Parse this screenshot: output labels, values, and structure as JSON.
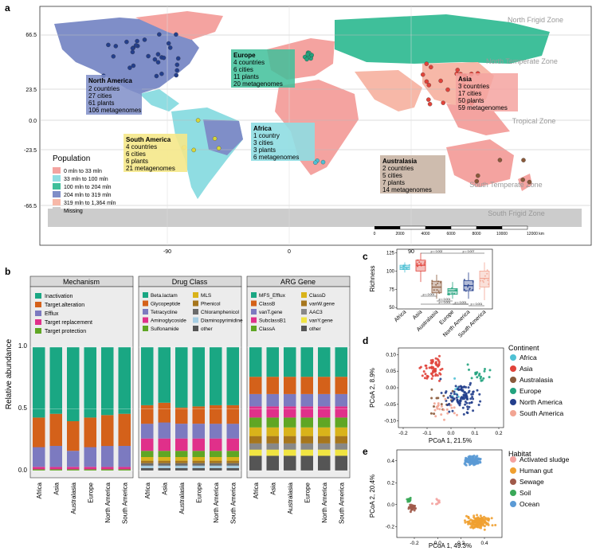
{
  "panel_labels": {
    "a": "a",
    "b": "b",
    "c": "c",
    "d": "d",
    "e": "e"
  },
  "colors": {
    "africa": "#4fc1d4",
    "asia": "#e0433a",
    "australasia": "#8a5a3b",
    "europe": "#23a37e",
    "north_america": "#243f8c",
    "south_america": "#f2a593",
    "pop0": "#f4a3a0",
    "pop1": "#8fdde2",
    "pop2": "#3fbf9a",
    "pop3": "#7f8ec8",
    "pop4": "#f7b8a8",
    "missing": "#cccccc",
    "ocean": "#ffffff",
    "inactivation": "#1aa783",
    "target_alteration": "#d4611a",
    "efflux": "#7c7ac0",
    "target_replacement": "#e0308a",
    "target_protection": "#5fa624"
  },
  "map": {
    "zones": [
      "North Frigid Zone",
      "North Temperate Zone",
      "Tropical Zone",
      "South Temperate Zone",
      "South Frigid Zone"
    ],
    "lat_ticks": [
      "66.5",
      "23.5",
      "0.0",
      "-23.5",
      "-66.5"
    ],
    "lon_ticks": [
      "-90",
      "0",
      "90"
    ],
    "legend_title": "Population",
    "legend_items": [
      "0 mln to 33 mln",
      "33 mln to 100 mln",
      "100 mln to 204 mln",
      "204 mln to 319 mln",
      "319 mln to 1,364 mln",
      "Missing"
    ],
    "scale_ticks": [
      "0",
      "2000",
      "4000",
      "6000",
      "8000",
      "10000",
      "12000 km"
    ],
    "boxes": [
      {
        "title": "North America",
        "lines": [
          "2 countries",
          "27 cities",
          "61 plants",
          "106 metagenomes"
        ]
      },
      {
        "title": "Europe",
        "lines": [
          "4 countries",
          "6 cities",
          "11 plants",
          "20 metagenomes"
        ]
      },
      {
        "title": "Asia",
        "lines": [
          "3 countries",
          "17 cities",
          "50 plants",
          "59 metagenomes"
        ]
      },
      {
        "title": "South America",
        "lines": [
          "4 countries",
          "6 cities",
          "6 plants",
          "21 metagenomes"
        ]
      },
      {
        "title": "Africa",
        "lines": [
          "1 country",
          "3 cities",
          "3 plants",
          "6 metagenomes"
        ]
      },
      {
        "title": "Australasia",
        "lines": [
          "2 countries",
          "5 cities",
          "7 plants",
          "14 metagenomes"
        ]
      }
    ]
  },
  "chart_data": [
    {
      "type": "bar",
      "title": "Mechanism",
      "categories": [
        "Africa",
        "Asia",
        "Australasia",
        "Europe",
        "North America",
        "South America"
      ],
      "ylabel": "Relative abundance",
      "ylim": [
        0,
        1
      ],
      "yticks": [
        "0.0",
        "0.5",
        "1.0"
      ],
      "series": [
        {
          "name": "Target protection",
          "values": [
            0.01,
            0.01,
            0.01,
            0.01,
            0.01,
            0.01
          ]
        },
        {
          "name": "Target replacement",
          "values": [
            0.02,
            0.02,
            0.02,
            0.02,
            0.02,
            0.02
          ]
        },
        {
          "name": "Efflux",
          "values": [
            0.16,
            0.17,
            0.13,
            0.16,
            0.17,
            0.17
          ]
        },
        {
          "name": "Target.alteration",
          "values": [
            0.24,
            0.26,
            0.24,
            0.24,
            0.25,
            0.26
          ]
        },
        {
          "name": "Inactivation",
          "values": [
            0.57,
            0.54,
            0.6,
            0.57,
            0.55,
            0.54
          ]
        }
      ]
    },
    {
      "type": "bar",
      "title": "Drug Class",
      "categories": [
        "Africa",
        "Asia",
        "Australasia",
        "Europe",
        "North America",
        "South America"
      ],
      "legend": [
        "Beta.lactam",
        "Glycopeptide",
        "Tetracycline",
        "Aminoglycoside",
        "Sulfonamide",
        "MLS",
        "Phenicol",
        "Chloramphenicol",
        "Diaminopyrimidine",
        "other"
      ],
      "series": [
        {
          "name": "other",
          "values": [
            0.02,
            0.02,
            0.02,
            0.02,
            0.02,
            0.02
          ]
        },
        {
          "name": "Diaminopyrimidine",
          "values": [
            0.02,
            0.02,
            0.02,
            0.02,
            0.02,
            0.02
          ]
        },
        {
          "name": "Chloramphenicol",
          "values": [
            0.02,
            0.02,
            0.02,
            0.02,
            0.02,
            0.02
          ]
        },
        {
          "name": "Phenicol",
          "values": [
            0.02,
            0.02,
            0.02,
            0.02,
            0.02,
            0.02
          ]
        },
        {
          "name": "MLS",
          "values": [
            0.03,
            0.03,
            0.03,
            0.03,
            0.03,
            0.03
          ]
        },
        {
          "name": "Sulfonamide",
          "values": [
            0.05,
            0.05,
            0.05,
            0.05,
            0.05,
            0.05
          ]
        },
        {
          "name": "Aminoglycoside",
          "values": [
            0.1,
            0.1,
            0.1,
            0.1,
            0.1,
            0.1
          ]
        },
        {
          "name": "Tetracycline",
          "values": [
            0.12,
            0.13,
            0.12,
            0.12,
            0.12,
            0.12
          ]
        },
        {
          "name": "Glycopeptide",
          "values": [
            0.15,
            0.16,
            0.13,
            0.14,
            0.15,
            0.15
          ]
        },
        {
          "name": "Beta.lactam",
          "values": [
            0.47,
            0.45,
            0.49,
            0.48,
            0.47,
            0.47
          ]
        }
      ]
    },
    {
      "type": "bar",
      "title": "ARG Gene",
      "categories": [
        "Africa",
        "Asia",
        "Australasia",
        "Europe",
        "North America",
        "South America"
      ],
      "legend": [
        "MFS_Efflux",
        "ClassB",
        "vanT.gene",
        "SubclassB1",
        "ClassA",
        "ClassD",
        "vanW.gene",
        "AAC3",
        "vanY.gene",
        "other"
      ],
      "series": [
        {
          "name": "other",
          "values": [
            0.12,
            0.12,
            0.12,
            0.12,
            0.12,
            0.12
          ]
        },
        {
          "name": "vanY.gene",
          "values": [
            0.05,
            0.05,
            0.05,
            0.05,
            0.05,
            0.05
          ]
        },
        {
          "name": "AAC3",
          "values": [
            0.05,
            0.05,
            0.05,
            0.05,
            0.05,
            0.05
          ]
        },
        {
          "name": "vanW.gene",
          "values": [
            0.06,
            0.06,
            0.06,
            0.06,
            0.06,
            0.06
          ]
        },
        {
          "name": "ClassD",
          "values": [
            0.07,
            0.07,
            0.07,
            0.07,
            0.07,
            0.07
          ]
        },
        {
          "name": "ClassA",
          "values": [
            0.08,
            0.08,
            0.08,
            0.08,
            0.08,
            0.08
          ]
        },
        {
          "name": "SubclassB1",
          "values": [
            0.09,
            0.09,
            0.09,
            0.09,
            0.09,
            0.09
          ]
        },
        {
          "name": "vanT.gene",
          "values": [
            0.1,
            0.1,
            0.1,
            0.1,
            0.1,
            0.1
          ]
        },
        {
          "name": "ClassB",
          "values": [
            0.14,
            0.14,
            0.14,
            0.14,
            0.14,
            0.14
          ]
        },
        {
          "name": "MFS_Efflux",
          "values": [
            0.24,
            0.24,
            0.24,
            0.24,
            0.24,
            0.24
          ]
        }
      ]
    },
    {
      "type": "box",
      "categories": [
        "Africa",
        "Asia",
        "Australasia",
        "Europe",
        "North America",
        "South America"
      ],
      "ylabel": "Richness",
      "ylim": [
        48,
        130
      ],
      "yticks": [
        "50",
        "75",
        "100",
        "125"
      ],
      "boxes": [
        {
          "min": 98,
          "q1": 102,
          "median": 105,
          "q3": 108,
          "max": 112
        },
        {
          "min": 85,
          "q1": 100,
          "median": 108,
          "q3": 115,
          "max": 125
        },
        {
          "min": 62,
          "q1": 70,
          "median": 78,
          "q3": 86,
          "max": 95
        },
        {
          "min": 62,
          "q1": 68,
          "median": 73,
          "q3": 76,
          "max": 85
        },
        {
          "min": 62,
          "q1": 73,
          "median": 80,
          "q3": 87,
          "max": 98
        },
        {
          "min": 60,
          "q1": 78,
          "median": 90,
          "q3": 100,
          "max": 112
        }
      ],
      "pvalues": [
        "p = 0.002",
        "p = 0.007",
        "p < 0.001",
        "p < 0.001",
        "p < 0.001",
        "p < 0.001",
        "p = 0.001"
      ]
    },
    {
      "type": "scatter",
      "xlabel": "PCoA 1, 21.5%",
      "ylabel": "PCoA 2, 8.9%",
      "xlim": [
        -0.22,
        0.22
      ],
      "ylim": [
        -0.12,
        0.12
      ],
      "xticks": [
        "-0.2",
        "-0.1",
        "0.0",
        "0.1",
        "0.2"
      ],
      "yticks": [
        "0.10",
        "0.05",
        "0.00",
        "-0.05",
        "-0.10"
      ],
      "legend_title": "Continent",
      "series": [
        {
          "name": "Africa",
          "center": [
            0.0,
            -0.01
          ],
          "spread": [
            0.03,
            0.03
          ],
          "n": 6
        },
        {
          "name": "Asia",
          "center": [
            -0.08,
            0.06
          ],
          "spread": [
            0.04,
            0.03
          ],
          "n": 59
        },
        {
          "name": "Australasia",
          "center": [
            -0.04,
            -0.04
          ],
          "spread": [
            0.04,
            0.04
          ],
          "n": 14
        },
        {
          "name": "Europe",
          "center": [
            0.12,
            0.04
          ],
          "spread": [
            0.04,
            0.03
          ],
          "n": 20
        },
        {
          "name": "North America",
          "center": [
            0.04,
            -0.03
          ],
          "spread": [
            0.07,
            0.04
          ],
          "n": 106
        },
        {
          "name": "South America",
          "center": [
            -0.03,
            -0.06
          ],
          "spread": [
            0.05,
            0.03
          ],
          "n": 21
        }
      ]
    },
    {
      "type": "scatter",
      "xlabel": "PCoA 1, 49.3%",
      "ylabel": "PCoA 2, 20.4%",
      "xlim": [
        -0.35,
        0.55
      ],
      "ylim": [
        -0.3,
        0.5
      ],
      "xticks": [
        "-0.2",
        "0.0",
        "0.2",
        "0.4"
      ],
      "yticks": [
        "0.4",
        "0.2",
        "0.0",
        "-0.2"
      ],
      "legend_title": "Habitat",
      "series": [
        {
          "name": "Activated sludge",
          "center": [
            0.0,
            0.02
          ],
          "spread": [
            0.04,
            0.03
          ],
          "n": 8
        },
        {
          "name": "Human gut",
          "center": [
            0.35,
            -0.16
          ],
          "spread": [
            0.1,
            0.05
          ],
          "n": 160
        },
        {
          "name": "Sewage",
          "center": [
            -0.22,
            -0.03
          ],
          "spread": [
            0.03,
            0.03
          ],
          "n": 35
        },
        {
          "name": "Soil",
          "center": [
            -0.24,
            0.04
          ],
          "spread": [
            0.02,
            0.02
          ],
          "n": 12
        },
        {
          "name": "Ocean",
          "center": [
            0.3,
            0.4
          ],
          "spread": [
            0.07,
            0.04
          ],
          "n": 120
        }
      ]
    }
  ]
}
